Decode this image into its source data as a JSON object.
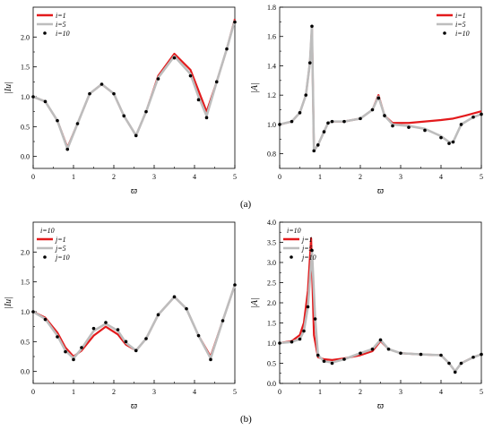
{
  "captions": {
    "a": "(a)",
    "b": "(b)"
  },
  "colors": {
    "series1": "#e31a1c",
    "series2": "#bdbdbd",
    "series3": "#000000"
  },
  "chart_data": [
    {
      "id": "a-left",
      "type": "line",
      "ylabel": "|Iu|",
      "xlabel": "ϖ",
      "xlim": [
        0,
        5
      ],
      "ylim": [
        -0.2,
        2.5
      ],
      "xticks": [
        "0",
        "1",
        "2",
        "3",
        "4",
        "5"
      ],
      "yticks": [
        "0.0",
        "0.5",
        "1.0",
        "1.5",
        "2.0"
      ],
      "legend_header": "",
      "legend_position": "top-left",
      "series": [
        {
          "name": "i=1",
          "style": "line",
          "color": "#e31a1c",
          "x": [
            0,
            0.3,
            0.6,
            0.85,
            1.1,
            1.4,
            1.7,
            2.0,
            2.25,
            2.55,
            2.8,
            3.1,
            3.5,
            3.9,
            4.1,
            4.3,
            4.55,
            4.8,
            5
          ],
          "y": [
            1.0,
            0.92,
            0.6,
            0.15,
            0.55,
            1.05,
            1.21,
            1.05,
            0.68,
            0.35,
            0.75,
            1.35,
            1.72,
            1.45,
            1.1,
            0.75,
            1.25,
            1.8,
            2.3
          ]
        },
        {
          "name": "i=5",
          "style": "line",
          "color": "#bdbdbd",
          "x": [
            0,
            0.3,
            0.6,
            0.85,
            1.1,
            1.4,
            1.7,
            2.0,
            2.25,
            2.55,
            2.8,
            3.1,
            3.5,
            3.9,
            4.1,
            4.3,
            4.55,
            4.8,
            5
          ],
          "y": [
            1.0,
            0.92,
            0.6,
            0.13,
            0.55,
            1.05,
            1.21,
            1.05,
            0.68,
            0.35,
            0.75,
            1.32,
            1.68,
            1.38,
            1.0,
            0.68,
            1.25,
            1.8,
            2.28
          ]
        },
        {
          "name": "i=10",
          "style": "dots",
          "color": "#000000",
          "x": [
            0,
            0.3,
            0.6,
            0.85,
            1.1,
            1.4,
            1.7,
            2.0,
            2.25,
            2.55,
            2.8,
            3.1,
            3.5,
            3.9,
            4.1,
            4.3,
            4.55,
            4.8,
            5
          ],
          "y": [
            1.0,
            0.92,
            0.6,
            0.12,
            0.55,
            1.05,
            1.21,
            1.05,
            0.68,
            0.35,
            0.75,
            1.3,
            1.65,
            1.35,
            0.95,
            0.65,
            1.25,
            1.8,
            2.25
          ]
        }
      ]
    },
    {
      "id": "a-right",
      "type": "line",
      "ylabel": "|A|",
      "xlabel": "ϖ",
      "xlim": [
        0,
        5
      ],
      "ylim": [
        0.7,
        1.8
      ],
      "xticks": [
        "0",
        "1",
        "2",
        "3",
        "4",
        "5"
      ],
      "yticks": [
        "0.8",
        "1.0",
        "1.2",
        "1.4",
        "1.6",
        "1.8"
      ],
      "legend_header": "",
      "legend_position": "top-right",
      "series": [
        {
          "name": "i=1",
          "style": "line",
          "color": "#e31a1c",
          "x": [
            0,
            0.3,
            0.5,
            0.65,
            0.75,
            0.8,
            0.85,
            0.95,
            1.1,
            1.2,
            1.3,
            1.6,
            2.0,
            2.3,
            2.45,
            2.6,
            2.8,
            3.2,
            3.6,
            4.0,
            4.3,
            4.6,
            5
          ],
          "y": [
            1.0,
            1.02,
            1.08,
            1.2,
            1.42,
            1.66,
            0.82,
            0.86,
            0.95,
            1.01,
            1.02,
            1.02,
            1.04,
            1.1,
            1.2,
            1.06,
            1.01,
            1.01,
            1.02,
            1.03,
            1.04,
            1.06,
            1.09
          ]
        },
        {
          "name": "i=5",
          "style": "line",
          "color": "#bdbdbd",
          "x": [
            0,
            0.3,
            0.5,
            0.65,
            0.75,
            0.8,
            0.85,
            0.95,
            1.1,
            1.2,
            1.3,
            1.6,
            2.0,
            2.3,
            2.45,
            2.6,
            2.8,
            3.2,
            3.6,
            4.0,
            4.2,
            4.3,
            4.5,
            4.8,
            5
          ],
          "y": [
            1.0,
            1.02,
            1.08,
            1.2,
            1.42,
            1.67,
            0.82,
            0.86,
            0.95,
            1.01,
            1.02,
            1.02,
            1.04,
            1.1,
            1.19,
            1.06,
            1.0,
            0.99,
            0.97,
            0.92,
            0.88,
            0.88,
            1.0,
            1.05,
            1.07
          ]
        },
        {
          "name": "i=10",
          "style": "dots",
          "color": "#000000",
          "x": [
            0,
            0.3,
            0.5,
            0.65,
            0.75,
            0.8,
            0.85,
            0.95,
            1.1,
            1.2,
            1.3,
            1.6,
            2.0,
            2.3,
            2.45,
            2.6,
            2.8,
            3.2,
            3.6,
            4.0,
            4.2,
            4.3,
            4.5,
            4.8,
            5
          ],
          "y": [
            1.0,
            1.02,
            1.08,
            1.2,
            1.42,
            1.67,
            0.82,
            0.86,
            0.95,
            1.01,
            1.02,
            1.02,
            1.04,
            1.1,
            1.18,
            1.06,
            0.99,
            0.98,
            0.96,
            0.91,
            0.87,
            0.88,
            1.0,
            1.05,
            1.07
          ]
        }
      ]
    },
    {
      "id": "b-left",
      "type": "line",
      "ylabel": "|Iu|",
      "xlabel": "ϖ",
      "xlim": [
        0,
        5
      ],
      "ylim": [
        -0.2,
        2.5
      ],
      "xticks": [
        "0",
        "1",
        "2",
        "3",
        "4",
        "5"
      ],
      "yticks": [
        "0.0",
        "0.5",
        "1.0",
        "1.5",
        "2.0"
      ],
      "legend_header": "i=10",
      "legend_position": "top-left",
      "series": [
        {
          "name": "j=1",
          "style": "line",
          "color": "#e31a1c",
          "x": [
            0,
            0.3,
            0.6,
            0.8,
            1.0,
            1.2,
            1.5,
            1.8,
            2.1,
            2.3,
            2.55,
            2.8,
            3.1,
            3.5,
            3.8,
            4.1,
            4.4,
            4.7,
            5
          ],
          "y": [
            1.0,
            0.9,
            0.65,
            0.4,
            0.25,
            0.35,
            0.6,
            0.75,
            0.62,
            0.45,
            0.35,
            0.55,
            0.95,
            1.25,
            1.05,
            0.6,
            0.25,
            0.85,
            1.45
          ]
        },
        {
          "name": "j=5",
          "style": "line",
          "color": "#bdbdbd",
          "x": [
            0,
            0.3,
            0.6,
            0.8,
            1.0,
            1.2,
            1.5,
            1.8,
            2.1,
            2.3,
            2.55,
            2.8,
            3.1,
            3.5,
            3.8,
            4.1,
            4.4,
            4.7,
            5
          ],
          "y": [
            1.0,
            0.88,
            0.6,
            0.35,
            0.22,
            0.38,
            0.68,
            0.8,
            0.68,
            0.48,
            0.35,
            0.55,
            0.95,
            1.25,
            1.05,
            0.6,
            0.22,
            0.85,
            1.45
          ]
        },
        {
          "name": "j=10",
          "style": "dots",
          "color": "#000000",
          "x": [
            0,
            0.3,
            0.6,
            0.8,
            1.0,
            1.2,
            1.5,
            1.8,
            2.1,
            2.3,
            2.55,
            2.8,
            3.1,
            3.5,
            3.8,
            4.1,
            4.4,
            4.7,
            5
          ],
          "y": [
            1.0,
            0.87,
            0.58,
            0.33,
            0.2,
            0.4,
            0.72,
            0.82,
            0.7,
            0.5,
            0.35,
            0.55,
            0.95,
            1.25,
            1.05,
            0.6,
            0.2,
            0.85,
            1.45
          ]
        }
      ]
    },
    {
      "id": "b-right",
      "type": "line",
      "ylabel": "|A|",
      "xlabel": "ϖ",
      "xlim": [
        0,
        5
      ],
      "ylim": [
        0,
        4
      ],
      "xticks": [
        "0",
        "1",
        "2",
        "3",
        "4",
        "5"
      ],
      "yticks": [
        "0.0",
        "0.5",
        "1.0",
        "1.5",
        "2.0",
        "2.5",
        "3.0",
        "3.5",
        "4.0"
      ],
      "legend_header": "i=10",
      "legend_position": "top-left",
      "series": [
        {
          "name": "j=1",
          "style": "line",
          "color": "#e31a1c",
          "x": [
            0,
            0.3,
            0.5,
            0.6,
            0.7,
            0.78,
            0.85,
            0.95,
            1.1,
            1.3,
            1.6,
            2.0,
            2.3,
            2.5,
            2.7,
            3.0,
            3.5,
            4.0,
            4.2,
            4.35,
            4.5,
            4.8,
            5
          ],
          "y": [
            1.0,
            1.05,
            1.2,
            1.5,
            2.3,
            3.6,
            1.2,
            0.65,
            0.6,
            0.58,
            0.62,
            0.7,
            0.8,
            1.05,
            0.85,
            0.75,
            0.72,
            0.7,
            0.5,
            0.3,
            0.5,
            0.65,
            0.72
          ]
        },
        {
          "name": "j=5",
          "style": "line",
          "color": "#bdbdbd",
          "x": [
            0,
            0.3,
            0.5,
            0.6,
            0.7,
            0.8,
            0.88,
            0.95,
            1.1,
            1.3,
            1.6,
            2.0,
            2.3,
            2.5,
            2.7,
            3.0,
            3.5,
            4.0,
            4.2,
            4.35,
            4.5,
            4.8,
            5
          ],
          "y": [
            1.0,
            1.03,
            1.1,
            1.3,
            1.9,
            3.3,
            1.6,
            0.7,
            0.55,
            0.52,
            0.6,
            0.75,
            0.85,
            1.08,
            0.85,
            0.75,
            0.72,
            0.7,
            0.5,
            0.3,
            0.5,
            0.65,
            0.72
          ]
        },
        {
          "name": "j=10",
          "style": "dots",
          "color": "#000000",
          "x": [
            0,
            0.3,
            0.5,
            0.6,
            0.7,
            0.8,
            0.88,
            0.95,
            1.1,
            1.3,
            1.6,
            2.0,
            2.3,
            2.5,
            2.7,
            3.0,
            3.5,
            4.0,
            4.2,
            4.35,
            4.5,
            4.8,
            5
          ],
          "y": [
            1.0,
            1.03,
            1.1,
            1.3,
            1.9,
            3.3,
            1.6,
            0.7,
            0.55,
            0.5,
            0.6,
            0.75,
            0.85,
            1.08,
            0.85,
            0.75,
            0.72,
            0.7,
            0.5,
            0.28,
            0.5,
            0.65,
            0.72
          ]
        }
      ]
    }
  ]
}
